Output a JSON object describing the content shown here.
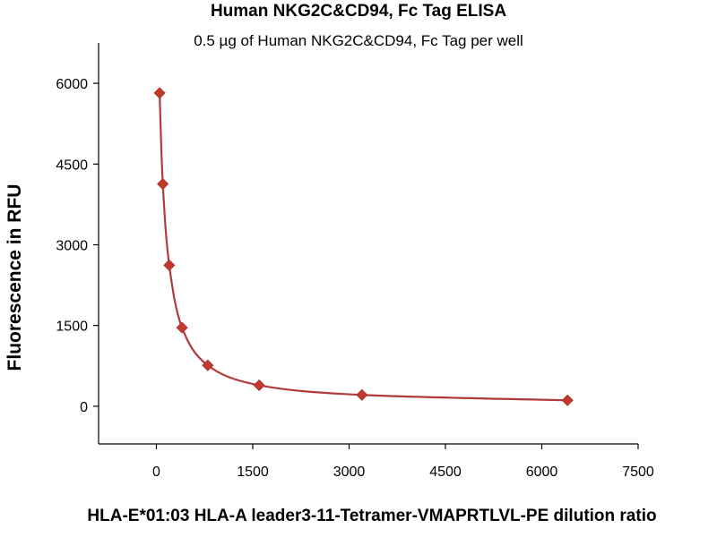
{
  "chart_data": {
    "type": "scatter",
    "title": "Human NKG2C&CD94, Fc Tag ELISA",
    "subtitle": "0.5 µg of Human NKG2C&CD94, Fc Tag per well",
    "xlabel": "HLA-E*01:03 HLA-A leader3-11-Tetramer-VMAPRTLVL-PE dilution ratio",
    "ylabel": "Fluorescence in RFU",
    "xlim": [
      -900,
      7500
    ],
    "ylim": [
      -700,
      6750
    ],
    "x_ticks": [
      0,
      1500,
      3000,
      4500,
      6000,
      7500
    ],
    "y_ticks": [
      0,
      1500,
      3000,
      4500,
      6000
    ],
    "series": [
      {
        "marker": "diamond",
        "color": "#c0392b",
        "line_color": "#b33a3a",
        "fit": "smooth curve",
        "points": [
          {
            "x": 50,
            "y": 5820
          },
          {
            "x": 100,
            "y": 4130
          },
          {
            "x": 200,
            "y": 2620
          },
          {
            "x": 400,
            "y": 1460
          },
          {
            "x": 800,
            "y": 760
          },
          {
            "x": 1600,
            "y": 390
          },
          {
            "x": 3200,
            "y": 210
          },
          {
            "x": 6400,
            "y": 110
          }
        ]
      }
    ]
  }
}
